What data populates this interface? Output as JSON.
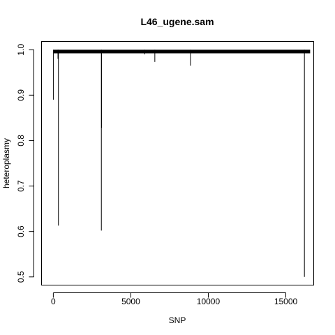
{
  "chart_data": {
    "type": "line",
    "title": "L46_ugene.sam",
    "xlabel": "SNP",
    "ylabel": "heteroplasmy",
    "xlim": [
      -760,
      16800
    ],
    "ylim": [
      0.482,
      1.018
    ],
    "x_ticks": [
      0,
      5000,
      10000,
      15000
    ],
    "y_ticks": [
      0.5,
      0.6,
      0.7,
      0.8,
      0.9,
      1.0
    ],
    "x_tick_labels": [
      "0",
      "5000",
      "10000",
      "15000"
    ],
    "y_tick_labels": [
      "0.5",
      "0.6",
      "0.7",
      "0.8",
      "0.9",
      "1.0"
    ],
    "baseline_band": {
      "x_range": [
        0,
        16569
      ],
      "y_top": 1.0,
      "y_bottom": 0.992
    },
    "series": [
      {
        "type": "h",
        "x": [
          10,
          300,
          330,
          3100,
          3110,
          5900,
          6550,
          8850,
          16200
        ],
        "y": [
          0.89,
          0.98,
          0.613,
          0.602,
          0.828,
          0.99,
          0.973,
          0.965,
          0.5
        ]
      }
    ],
    "grid": false,
    "legend": "none"
  }
}
